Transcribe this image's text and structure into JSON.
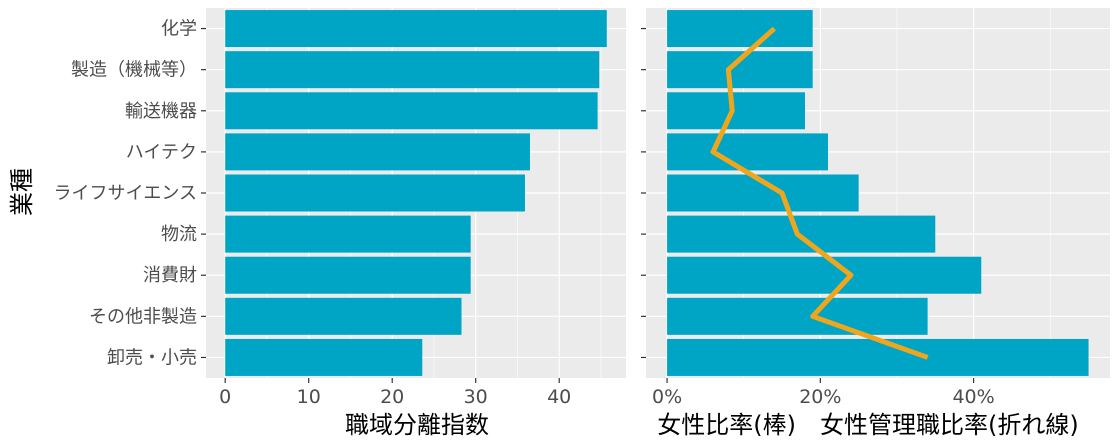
{
  "colors": {
    "panel_bg": "#ebebeb",
    "grid": "#ffffff",
    "bar": "#00a5c6",
    "line": "#f0a61c",
    "tick_text": "#4d4d4d"
  },
  "chart_data": [
    {
      "type": "bar",
      "orientation": "horizontal",
      "categories": [
        "卸売・小売",
        "その他非製造",
        "消費財",
        "物流",
        "ライフサイエンス",
        "ハイテク",
        "輸送機器",
        "製造（機械等）",
        "化学"
      ],
      "values": [
        23.6,
        28.3,
        29.4,
        29.4,
        35.9,
        36.5,
        44.6,
        44.8,
        45.7
      ],
      "xlabel": "職域分離指数",
      "ylabel": "業種",
      "xlim": [
        -2.3,
        48.0
      ],
      "x_ticks": [
        0,
        10,
        20,
        30,
        40
      ],
      "x_tick_labels": [
        "0",
        "10",
        "20",
        "30",
        "40"
      ],
      "grid": true
    },
    {
      "type": "bar+line",
      "orientation": "horizontal",
      "categories": [
        "卸売・小売",
        "その他非製造",
        "消費財",
        "物流",
        "ライフサイエンス",
        "ハイテク",
        "輸送機器",
        "製造（機械等）",
        "化学"
      ],
      "series": [
        {
          "values": [
            0.55,
            0.34,
            0.41,
            0.35,
            0.25,
            0.21,
            0.18,
            0.19,
            0.19
          ]
        },
        {
          "values": [
            0.34,
            0.19,
            0.24,
            0.17,
            0.15,
            0.06,
            0.085,
            0.08,
            0.14
          ]
        }
      ],
      "xlabel": "女性比率(棒)　女性管理職比率(折れ線)",
      "xlim": [
        -0.0275,
        0.578
      ],
      "x_ticks": [
        0,
        0.2,
        0.4
      ],
      "x_tick_labels": [
        "0%",
        "20%",
        "40%"
      ],
      "grid": true
    }
  ]
}
